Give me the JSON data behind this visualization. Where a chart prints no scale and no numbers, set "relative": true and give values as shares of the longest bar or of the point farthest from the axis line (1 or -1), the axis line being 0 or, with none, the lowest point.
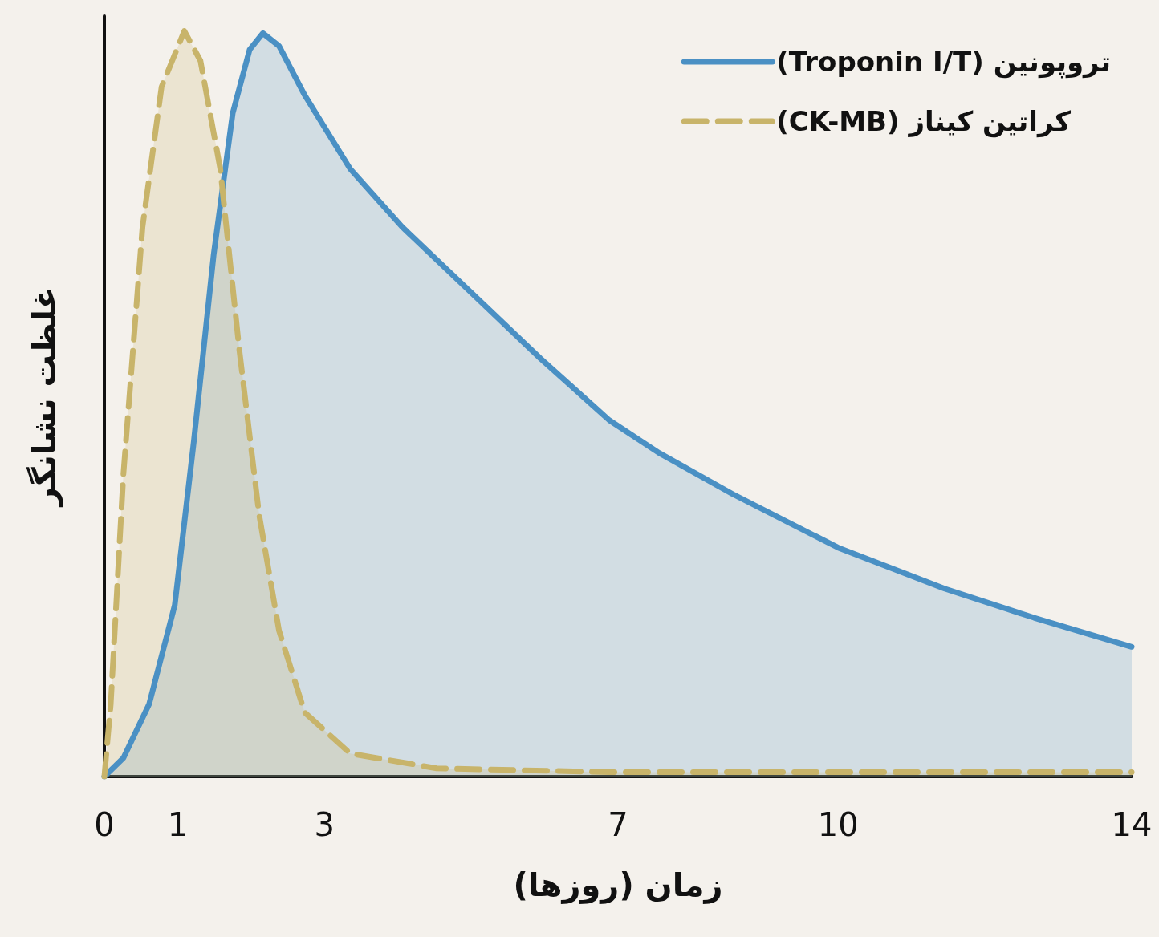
{
  "chart_data": {
    "type": "area",
    "xlabel": "زمان (روزها)",
    "ylabel": "غلظت نشانگر",
    "relative": true,
    "xlim": [
      0,
      14
    ],
    "xticks": [
      0,
      1,
      3,
      7,
      10,
      14
    ],
    "legend": "top right",
    "marker": "none",
    "series": [
      {
        "name": "تروپونین (Troponin I/T)",
        "color": "#4a90c4",
        "line_style": "solid",
        "x": [
          0,
          0.26,
          0.61,
          0.96,
          1.22,
          1.49,
          1.75,
          1.98,
          2.16,
          2.38,
          2.73,
          3.35,
          4.06,
          5.0,
          5.94,
          6.88,
          7.56,
          8.56,
          10,
          11.45,
          12.67,
          14
        ],
        "values": [
          0,
          0.025,
          0.097,
          0.23,
          0.45,
          0.7,
          0.89,
          0.975,
          0.997,
          0.98,
          0.914,
          0.815,
          0.737,
          0.649,
          0.561,
          0.478,
          0.434,
          0.379,
          0.307,
          0.252,
          0.213,
          0.174
        ]
      },
      {
        "name": "کراتین کیناز (CK-MB)",
        "color": "#c8b46a",
        "line_style": "dashed",
        "x": [
          0,
          0.087,
          0.26,
          0.52,
          0.78,
          1.09,
          1.31,
          1.58,
          1.84,
          2.11,
          2.38,
          2.73,
          3.35,
          4.53,
          6.88,
          14
        ],
        "values": [
          0,
          0.097,
          0.406,
          0.737,
          0.925,
          1,
          0.96,
          0.815,
          0.572,
          0.351,
          0.196,
          0.086,
          0.031,
          0.011,
          0.006,
          0.006
        ]
      }
    ]
  }
}
